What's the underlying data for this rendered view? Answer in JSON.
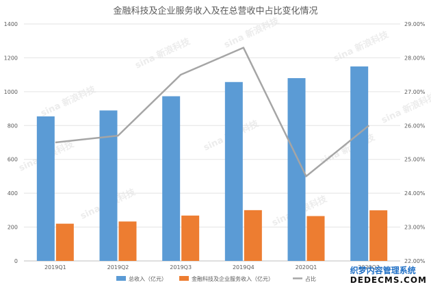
{
  "chart_data": {
    "type": "bar",
    "title": "金融科技及企业服务收入及在总营收中占比变化情况",
    "categories": [
      "2019Q1",
      "2019Q2",
      "2019Q3",
      "2019Q4",
      "2020Q1",
      "2020Q2"
    ],
    "series": [
      {
        "name": "总收入（亿元）",
        "type": "bar",
        "axis": "left",
        "color": "#5b9bd5",
        "values": [
          854,
          889,
          973,
          1057,
          1080,
          1149
        ]
      },
      {
        "name": "金融科技及企业服务收入（亿元）",
        "type": "bar",
        "axis": "left",
        "color": "#ed7d31",
        "values": [
          220,
          233,
          268,
          300,
          265,
          299
        ]
      },
      {
        "name": "占比",
        "type": "line",
        "axis": "right",
        "color": "#a5a5a5",
        "values": [
          25.5,
          25.7,
          27.5,
          28.3,
          24.5,
          26.0
        ]
      }
    ],
    "y_left": {
      "ylim": [
        0,
        1400
      ],
      "ticks": [
        "0",
        "200",
        "400",
        "600",
        "800",
        "1000",
        "1200",
        "1400"
      ]
    },
    "y_right": {
      "ylim": [
        22,
        29
      ],
      "ticks": [
        "22.00%",
        "23.00%",
        "24.00%",
        "25.00%",
        "26.00%",
        "27.00%",
        "28.00%",
        "29.00%"
      ]
    },
    "grid": true,
    "legend_position": "bottom"
  },
  "watermark": "sina 新浪科技",
  "corner_mark": {
    "line1": "织梦内容管理系统",
    "line2": "DEDECMS.COM"
  }
}
